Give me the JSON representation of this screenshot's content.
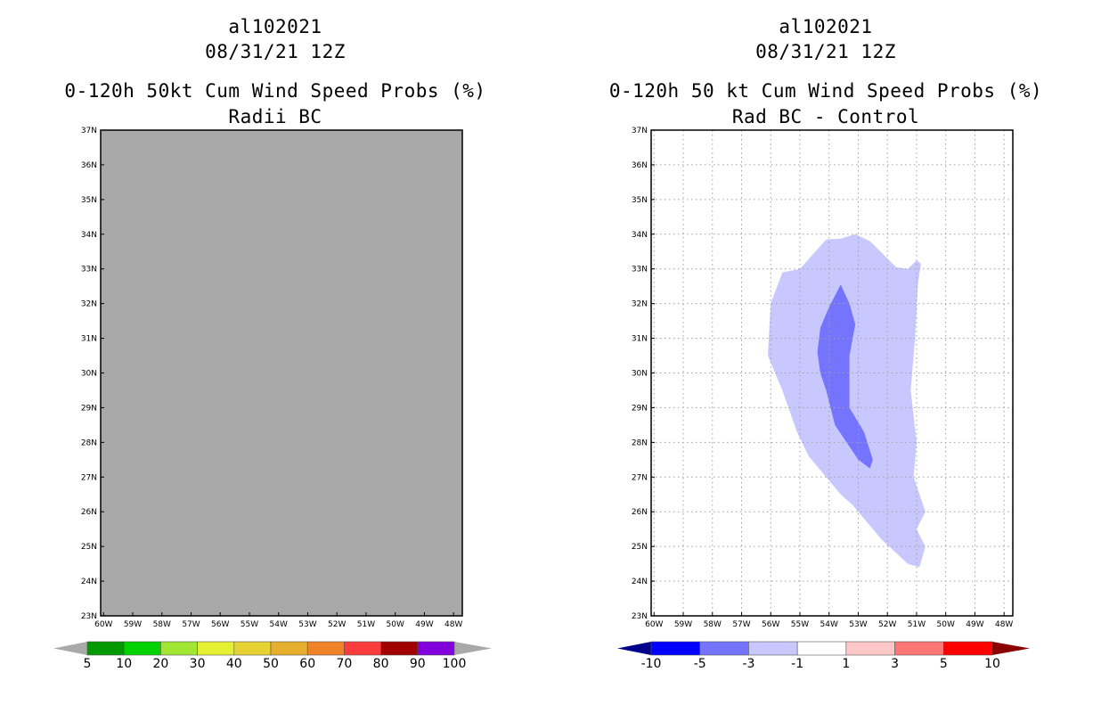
{
  "colors": {
    "no_data_fill": "#a9a9a9",
    "light_blue": "#c8c8ff",
    "mid_blue": "#7474ff",
    "grid": "#a0a0a0"
  },
  "chart_data": [
    {
      "type": "heatmap",
      "storm_id": "al102021",
      "datetime": "08/31/21 12Z",
      "title": "0-120h 50kt Cum Wind Speed Probs (%)",
      "subtitle": "Radii BC",
      "xlim": [
        -60.1,
        -47.7
      ],
      "ylim": [
        23,
        37
      ],
      "xticks": [
        -60,
        -59,
        -58,
        -57,
        -56,
        -55,
        -54,
        -53,
        -52,
        -51,
        -50,
        -49,
        -48
      ],
      "xtick_labels": [
        "60W",
        "59W",
        "58W",
        "57W",
        "56W",
        "55W",
        "54W",
        "53W",
        "52W",
        "51W",
        "50W",
        "49W",
        "48W"
      ],
      "yticks": [
        23,
        24,
        25,
        26,
        27,
        28,
        29,
        30,
        31,
        32,
        33,
        34,
        35,
        36,
        37
      ],
      "ytick_labels": [
        "23N",
        "24N",
        "25N",
        "26N",
        "27N",
        "28N",
        "29N",
        "30N",
        "31N",
        "32N",
        "33N",
        "34N",
        "35N",
        "36N",
        "37N"
      ],
      "grid": false,
      "field": "entire domain below 5% (no shading)",
      "colorbar": {
        "labels": [
          "5",
          "10",
          "20",
          "30",
          "40",
          "50",
          "60",
          "70",
          "80",
          "90",
          "100"
        ],
        "colors": [
          "#009900",
          "#00d200",
          "#a0e632",
          "#e6f032",
          "#e6d232",
          "#e6af2d",
          "#f08228",
          "#fa3c3c",
          "#a00000",
          "#8200dc"
        ],
        "low_extend_color": "#a9a9a9",
        "high_extend_color": "#a9a9a9"
      }
    },
    {
      "type": "heatmap",
      "storm_id": "al102021",
      "datetime": "08/31/21 12Z",
      "title": "0-120h 50 kt Cum Wind Speed Probs (%)",
      "subtitle": "Rad BC - Control",
      "xlim": [
        -60.1,
        -47.7
      ],
      "ylim": [
        23,
        37
      ],
      "xticks": [
        -60,
        -59,
        -58,
        -57,
        -56,
        -55,
        -54,
        -53,
        -52,
        -51,
        -50,
        -49,
        -48
      ],
      "xtick_labels": [
        "60W",
        "59W",
        "58W",
        "57W",
        "56W",
        "55W",
        "54W",
        "53W",
        "52W",
        "51W",
        "50W",
        "49W",
        "48W"
      ],
      "yticks": [
        23,
        24,
        25,
        26,
        27,
        28,
        29,
        30,
        31,
        32,
        33,
        34,
        35,
        36,
        37
      ],
      "ytick_labels": [
        "23N",
        "24N",
        "25N",
        "26N",
        "27N",
        "28N",
        "29N",
        "30N",
        "31N",
        "32N",
        "33N",
        "34N",
        "35N",
        "36N",
        "37N"
      ],
      "grid": true,
      "contours": [
        {
          "level": "-3 to -1",
          "color": "#c8c8ff",
          "lonlat": [
            [
              -55.0,
              33.0
            ],
            [
              -54.1,
              33.85
            ],
            [
              -53.6,
              33.87
            ],
            [
              -53.1,
              34.0
            ],
            [
              -52.6,
              33.8
            ],
            [
              -51.7,
              33.05
            ],
            [
              -51.3,
              33.0
            ],
            [
              -51.0,
              33.25
            ],
            [
              -50.85,
              33.15
            ],
            [
              -50.95,
              32.6
            ],
            [
              -51.05,
              31.0
            ],
            [
              -51.2,
              29.5
            ],
            [
              -51.0,
              28.0
            ],
            [
              -51.1,
              27.0
            ],
            [
              -50.7,
              26.0
            ],
            [
              -51.0,
              25.5
            ],
            [
              -50.7,
              25.0
            ],
            [
              -50.9,
              24.4
            ],
            [
              -51.3,
              24.5
            ],
            [
              -52.2,
              25.2
            ],
            [
              -52.6,
              25.6
            ],
            [
              -53.2,
              26.2
            ],
            [
              -53.6,
              26.5
            ],
            [
              -54.7,
              27.6
            ],
            [
              -55.1,
              28.3
            ],
            [
              -55.6,
              29.5
            ],
            [
              -56.1,
              30.5
            ],
            [
              -56.0,
              32.0
            ],
            [
              -55.6,
              32.9
            ]
          ]
        },
        {
          "level": "-5 to -3",
          "color": "#7474ff",
          "lonlat": [
            [
              -53.6,
              32.55
            ],
            [
              -53.3,
              32.0
            ],
            [
              -53.1,
              31.4
            ],
            [
              -53.3,
              30.5
            ],
            [
              -53.3,
              29.0
            ],
            [
              -52.8,
              28.3
            ],
            [
              -52.5,
              27.5
            ],
            [
              -52.6,
              27.25
            ],
            [
              -53.0,
              27.5
            ],
            [
              -53.8,
              28.5
            ],
            [
              -54.1,
              29.5
            ],
            [
              -54.3,
              30.0
            ],
            [
              -54.4,
              30.6
            ],
            [
              -54.3,
              31.3
            ],
            [
              -54.0,
              31.9
            ]
          ]
        }
      ],
      "colorbar": {
        "labels": [
          "-10",
          "-5",
          "-3",
          "-1",
          "1",
          "3",
          "5",
          "10"
        ],
        "colors": [
          "#0000ff",
          "#7474ff",
          "#c8c8ff",
          "#ffffff",
          "#ffc8c8",
          "#ff7474",
          "#ff0000"
        ],
        "low_extend_color": "#00008b",
        "high_extend_color": "#8b0000"
      }
    }
  ]
}
